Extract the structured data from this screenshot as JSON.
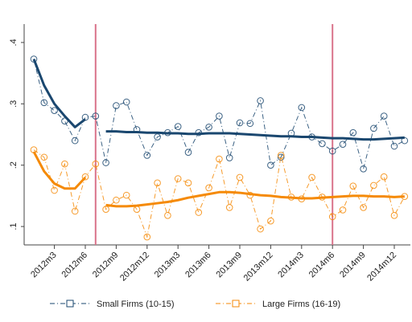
{
  "chart_data": {
    "type": "line",
    "categories": [
      null,
      null,
      "2012m3",
      null,
      null,
      "2012m6",
      null,
      null,
      "2012m9",
      null,
      null,
      "2012m12",
      null,
      null,
      "2013m3",
      null,
      null,
      "2013m6",
      null,
      null,
      "2013m9",
      null,
      null,
      "2013m12",
      null,
      null,
      "2014m3",
      null,
      null,
      "2014m6",
      null,
      null,
      "2014m9",
      null,
      null,
      "2014m12",
      null
    ],
    "ylim": [
      0.07,
      0.43
    ],
    "yticks": [
      {
        "value": 0.1,
        "label": ".1"
      },
      {
        "value": 0.2,
        "label": ".2"
      },
      {
        "value": 0.3,
        "label": ".3"
      },
      {
        "value": 0.4,
        "label": ".4"
      }
    ],
    "vlines": [
      6,
      29
    ],
    "vline_color": "#d9738a",
    "series": [
      {
        "name": "Small Firms (10-15)",
        "color": "#1a476f",
        "values": [
          0.373,
          0.302,
          0.289,
          0.272,
          0.24,
          0.278,
          0.28,
          0.204,
          0.297,
          0.303,
          0.258,
          0.216,
          0.246,
          0.253,
          0.263,
          0.221,
          0.253,
          0.262,
          0.28,
          0.212,
          0.269,
          0.268,
          0.305,
          0.2,
          0.213,
          0.252,
          0.294,
          0.246,
          0.235,
          0.223,
          0.234,
          0.253,
          0.194,
          0.26,
          0.28,
          0.231,
          0.24
        ],
        "trend": [
          0.373,
          0.33,
          0.3,
          0.28,
          0.262,
          0.275,
          null,
          0.255,
          0.255,
          0.254,
          0.254,
          0.253,
          0.253,
          0.252,
          0.252,
          0.251,
          0.251,
          0.252,
          0.252,
          0.252,
          0.251,
          0.25,
          0.249,
          0.248,
          0.247,
          0.247,
          0.246,
          0.246,
          0.245,
          0.244,
          0.244,
          0.243,
          0.242,
          0.242,
          0.243,
          0.244,
          0.245
        ]
      },
      {
        "name": "Large Firms (16-19)",
        "color": "#f58a07",
        "values": [
          0.225,
          0.213,
          0.159,
          0.202,
          0.125,
          0.181,
          0.202,
          0.128,
          0.143,
          0.151,
          0.128,
          0.083,
          0.171,
          0.118,
          0.178,
          0.171,
          0.123,
          0.163,
          0.21,
          0.131,
          0.18,
          0.151,
          0.096,
          0.109,
          0.216,
          0.148,
          0.145,
          0.18,
          0.148,
          0.116,
          0.127,
          0.166,
          0.131,
          0.167,
          0.181,
          0.118,
          0.149
        ],
        "trend": [
          0.222,
          0.19,
          0.17,
          0.162,
          0.162,
          0.18,
          null,
          0.135,
          0.133,
          0.133,
          0.134,
          0.136,
          0.138,
          0.14,
          0.143,
          0.147,
          0.15,
          0.153,
          0.156,
          0.156,
          0.155,
          0.153,
          0.151,
          0.15,
          0.148,
          0.147,
          0.146,
          0.146,
          0.147,
          0.148,
          0.149,
          0.15,
          0.15,
          0.149,
          0.149,
          0.148,
          0.149
        ]
      }
    ]
  }
}
